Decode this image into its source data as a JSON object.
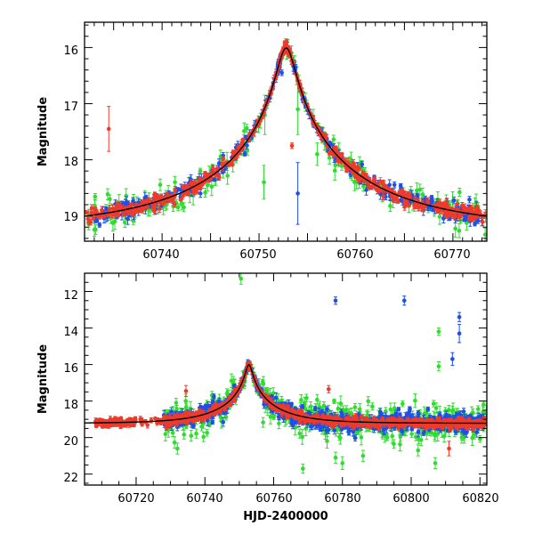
{
  "colors": {
    "blue": "#1f4fe6",
    "green": "#2fdc2f",
    "red": "#ee3b2b",
    "model": "#000000"
  },
  "chart_data": [
    {
      "id": "top",
      "type": "scatter",
      "title": "",
      "xlabel": "",
      "ylabel": "Magnitude",
      "xlim": [
        60732,
        60773.5
      ],
      "ylim": [
        19.45,
        15.55
      ],
      "y_inverted": true,
      "grid": false,
      "xticks": [
        "60740",
        "60750",
        "60760",
        "60770"
      ],
      "yticks": [
        "16",
        "17",
        "18",
        "19"
      ],
      "model_curve": {
        "t0": 60752.8,
        "peak_mag": 16.05,
        "base_mag": 19.22,
        "note_shape": "symmetric microlensing peak",
        "u0": 0.052,
        "tE": 17
      },
      "highlighted_points": [
        {
          "series": "red",
          "x": 60734.5,
          "y": 17.45,
          "err": 0.4
        },
        {
          "series": "green",
          "x": 60750.6,
          "y": 17.2,
          "err": 0.35
        },
        {
          "series": "green",
          "x": 60750.5,
          "y": 18.4,
          "err": 0.3
        },
        {
          "series": "green",
          "x": 60754.0,
          "y": 17.1,
          "err": 0.45
        },
        {
          "series": "green",
          "x": 60756.0,
          "y": 17.9,
          "err": 0.2
        },
        {
          "series": "blue",
          "x": 60754.0,
          "y": 18.6,
          "err": 0.55
        },
        {
          "series": "red",
          "x": 60752.85,
          "y": 15.9,
          "err": 0.05
        },
        {
          "series": "red",
          "x": 60753.4,
          "y": 17.75,
          "err": 0.05
        },
        {
          "series": "blue",
          "x": 60752.35,
          "y": 16.45,
          "err": 0.05
        }
      ]
    },
    {
      "id": "bottom",
      "type": "scatter",
      "title": "",
      "xlabel": "HJD-2400000",
      "ylabel": "Magnitude",
      "xlim": [
        60705,
        60822
      ],
      "ylim": [
        22.6,
        11.0
      ],
      "y_inverted": true,
      "grid": false,
      "xticks": [
        "60720",
        "60740",
        "60760",
        "60780",
        "60800",
        "60820"
      ],
      "yticks": [
        "12",
        "14",
        "16",
        "18",
        "20",
        "22"
      ],
      "model_curve": {
        "t0": 60752.8,
        "peak_mag": 16.05,
        "base_mag": 19.22,
        "u0": 0.052,
        "tE": 17
      },
      "highlighted_points": [
        {
          "series": "green",
          "x": 60750.5,
          "y": 11.3,
          "err": 0.3
        },
        {
          "series": "blue",
          "x": 60778.0,
          "y": 12.5,
          "err": 0.2
        },
        {
          "series": "blue",
          "x": 60798.0,
          "y": 12.5,
          "err": 0.25
        },
        {
          "series": "blue",
          "x": 60814.0,
          "y": 13.4,
          "err": 0.25
        },
        {
          "series": "blue",
          "x": 60814.0,
          "y": 14.3,
          "err": 0.5
        },
        {
          "series": "blue",
          "x": 60812.0,
          "y": 15.7,
          "err": 0.35
        },
        {
          "series": "green",
          "x": 60808.0,
          "y": 14.2,
          "err": 0.2
        },
        {
          "series": "green",
          "x": 60808.0,
          "y": 16.1,
          "err": 0.25
        },
        {
          "series": "red",
          "x": 60734.5,
          "y": 17.45,
          "err": 0.3
        },
        {
          "series": "green",
          "x": 60768.5,
          "y": 21.7,
          "err": 0.25
        },
        {
          "series": "green",
          "x": 60778.0,
          "y": 21.1,
          "err": 0.3
        },
        {
          "series": "green",
          "x": 60780.0,
          "y": 21.4,
          "err": 0.35
        },
        {
          "series": "green",
          "x": 60786.0,
          "y": 21.0,
          "err": 0.3
        },
        {
          "series": "green",
          "x": 60802.0,
          "y": 20.7,
          "err": 0.3
        },
        {
          "series": "green",
          "x": 60807.0,
          "y": 21.4,
          "err": 0.3
        },
        {
          "series": "red",
          "x": 60811.0,
          "y": 20.6,
          "err": 0.4
        },
        {
          "series": "red",
          "x": 60776.0,
          "y": 17.35,
          "err": 0.2
        },
        {
          "series": "green",
          "x": 60732.0,
          "y": 20.6,
          "err": 0.3
        },
        {
          "series": "green",
          "x": 60736.0,
          "y": 19.9,
          "err": 0.3
        }
      ]
    }
  ]
}
